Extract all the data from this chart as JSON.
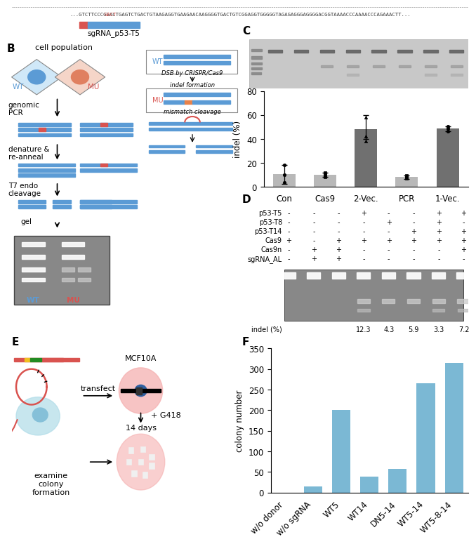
{
  "panel_c": {
    "categories": [
      "Con",
      "Cas9",
      "2-Vec.",
      "PCR",
      "1-Vec."
    ],
    "values": [
      10.5,
      10.0,
      48.0,
      8.0,
      48.5
    ],
    "errors_up": [
      8.0,
      2.0,
      12.0,
      1.5,
      2.0
    ],
    "errors_dn": [
      8.0,
      2.0,
      8.0,
      1.5,
      2.0
    ],
    "colors": [
      "#b8b8b8",
      "#b8b8b8",
      "#707070",
      "#b8b8b8",
      "#707070"
    ],
    "ylabel": "indel (%)",
    "ylim": [
      0,
      80
    ],
    "yticks": [
      0,
      20,
      40,
      60,
      80
    ],
    "scatter_points": {
      "Con": [
        3.5,
        10.0,
        18.5
      ],
      "Cas9": [
        8.5,
        10.0,
        11.5
      ],
      "2-Vec.": [
        38.0,
        42.0,
        58.0
      ],
      "PCR": [
        7.0,
        8.5,
        9.5
      ],
      "1-Vec.": [
        46.5,
        48.5,
        50.5
      ]
    },
    "scatter_markers": [
      "o",
      "s",
      "^",
      "s",
      "o"
    ]
  },
  "panel_f": {
    "categories": [
      "w/o donor",
      "w/o sgRNA",
      "WT5",
      "WT14",
      "DN5-14",
      "WT5-14",
      "WT5-8-14"
    ],
    "values": [
      0,
      15,
      200,
      38,
      58,
      265,
      315
    ],
    "color": "#7bb8d4",
    "ylabel": "colony number",
    "ylim": [
      0,
      350
    ],
    "yticks": [
      0,
      50,
      100,
      150,
      200,
      250,
      300,
      350
    ],
    "label": "F"
  },
  "panel_c_label": "C",
  "panel_b_label": "B",
  "panel_d_label": "D",
  "panel_e_label": "E",
  "dna_blue": "#5b9bd5",
  "dna_red": "#d9534f",
  "dna_orange": "#e8824a",
  "gel_gray": "#888888",
  "gel_dark": "#555555",
  "sgrna_label": "sgRNA_p53-T5",
  "seq_text": "...GTCTTCCCGGACTGAGTCTGACTGTAAGAGGTGAAGAACAAGGGGTGACTGTCGGAGGTGGGGGTAGAGAGGGAGGGGACGGTAAAACCCAAAACCCAGAAACTT...",
  "seq_red_part": "GACT",
  "panel_d_rows": {
    "labels": [
      "p53-T5",
      "p53-T8",
      "p53-T14",
      "Cas9",
      "Cas9n",
      "sgRNA_AL"
    ],
    "values": [
      [
        "-",
        "-",
        "-",
        "+",
        "-",
        "-",
        "+",
        "+"
      ],
      [
        "-",
        "-",
        "-",
        "-",
        "+",
        "-",
        "+",
        "-"
      ],
      [
        "-",
        "-",
        "-",
        "-",
        "-",
        "+",
        "+",
        "+"
      ],
      [
        "+",
        "-",
        "+",
        "+",
        "+",
        "+",
        "+",
        "+"
      ],
      [
        "-",
        "+",
        "+",
        "-",
        "-",
        "-",
        "-",
        "+"
      ],
      [
        "-",
        "+",
        "+",
        "-",
        "-",
        "-",
        "-",
        "-"
      ]
    ]
  },
  "indel_vals": [
    "12.3",
    "4.3",
    "5.9",
    "3.3",
    "7.2"
  ],
  "background": "#ffffff"
}
